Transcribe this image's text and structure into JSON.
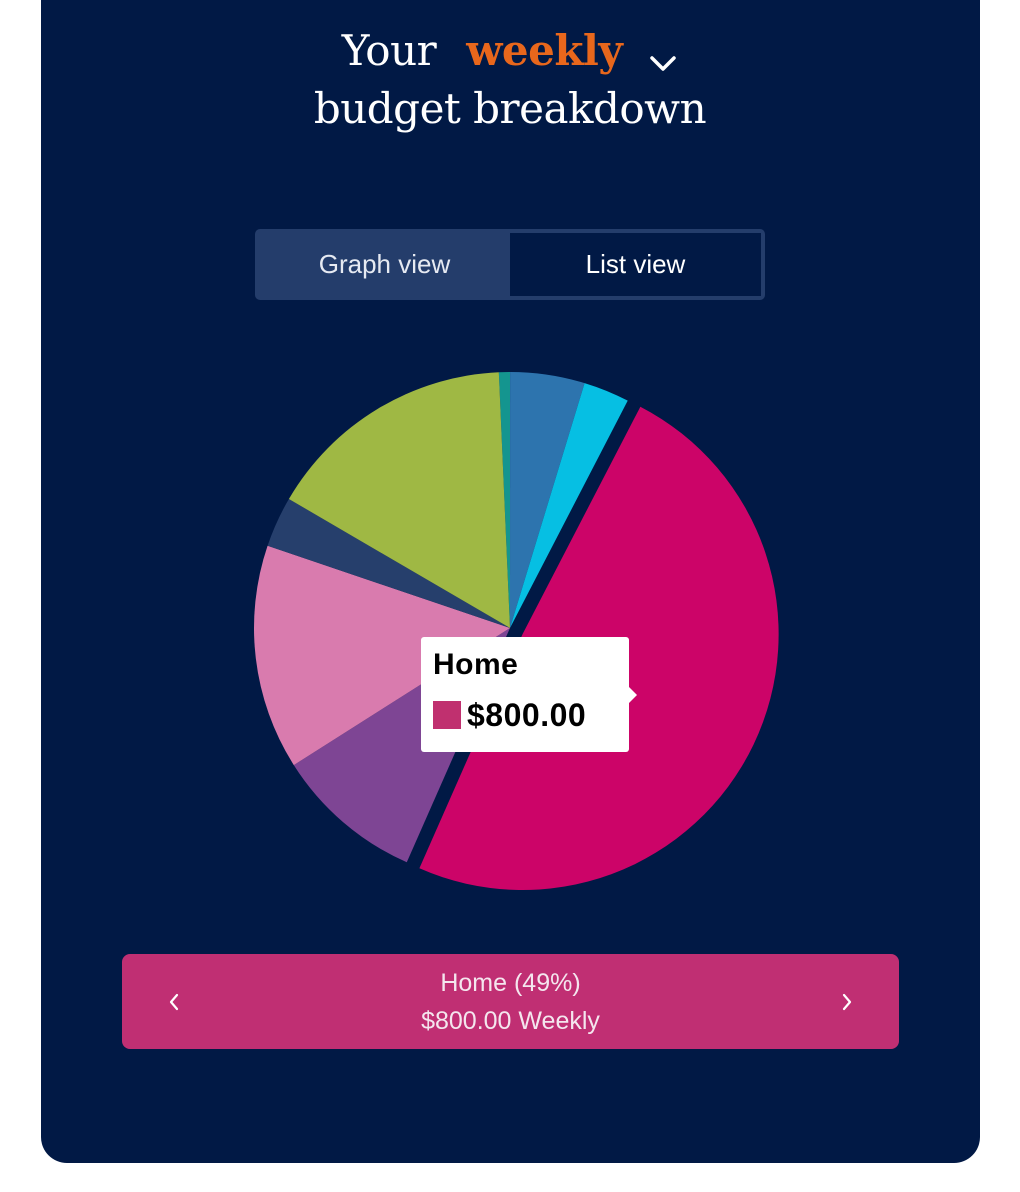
{
  "header": {
    "title_prefix": "Your",
    "period": "weekly",
    "title_suffix": "budget breakdown",
    "period_dropdown_icon": "chevron-down-icon",
    "period_color": "#E8671C"
  },
  "view_toggle": {
    "options": [
      {
        "label": "Graph view",
        "active": true
      },
      {
        "label": "List view",
        "active": false
      }
    ]
  },
  "tooltip": {
    "label": "Home",
    "value": "$800.00",
    "swatch_color": "#C0306F"
  },
  "selected_category": {
    "title": "Home (49%)",
    "amount": "$800.00 Weekly",
    "prev_icon": "chevron-left-icon",
    "next_icon": "chevron-right-icon",
    "color": "#C02F73"
  },
  "chart_data": {
    "type": "pie",
    "title": "Your weekly budget breakdown",
    "start_angle_deg": -2.5,
    "exploded": "Home",
    "legend_position": "none",
    "slices": [
      {
        "label": "Category (teal)",
        "percent": 0.7,
        "color": "#14958F"
      },
      {
        "label": "Category (steel blue)",
        "percent": 4.7,
        "color": "#2D74AE"
      },
      {
        "label": "Category (cyan)",
        "percent": 2.9,
        "color": "#06BFE3"
      },
      {
        "label": "Home",
        "percent": 49.0,
        "value": 800.0,
        "color": "#CC0468"
      },
      {
        "label": "Category (purple)",
        "percent": 9.4,
        "color": "#7E4594"
      },
      {
        "label": "Category (pink)",
        "percent": 14.2,
        "color": "#D97BAE"
      },
      {
        "label": "Category (navy)",
        "percent": 3.2,
        "color": "#263F6C"
      },
      {
        "label": "Category (green)",
        "percent": 15.9,
        "color": "#9FB844"
      }
    ]
  }
}
